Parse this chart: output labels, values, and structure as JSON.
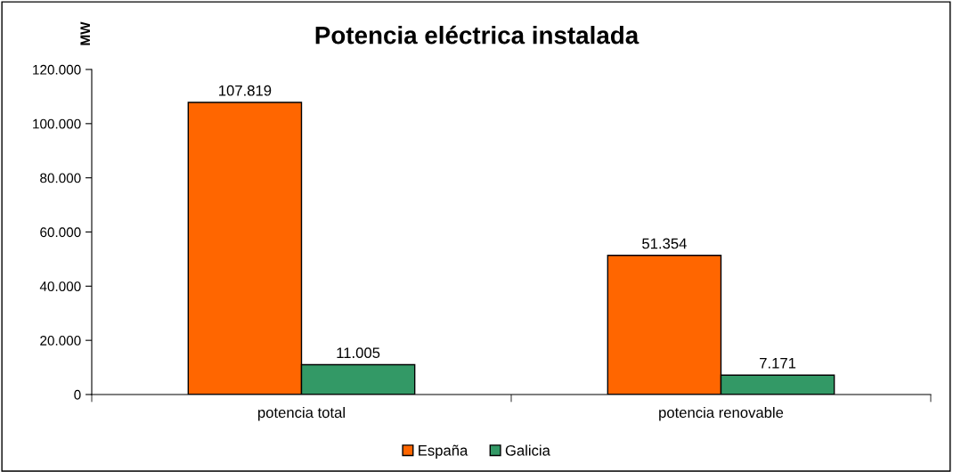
{
  "chart_data": {
    "type": "bar",
    "title": "Potencia eléctrica instalada",
    "ylabel": "MW",
    "categories": [
      "potencia total",
      "potencia renovable"
    ],
    "series": [
      {
        "name": "España",
        "color": "#ff6600",
        "values": [
          107819,
          51354
        ],
        "value_labels": [
          "107.819",
          "51.354"
        ]
      },
      {
        "name": "Galicia",
        "color": "#339966",
        "values": [
          11005,
          7171
        ],
        "value_labels": [
          "11.005",
          "7.171"
        ]
      }
    ],
    "ylim": [
      0,
      120000
    ],
    "yticks": [
      0,
      {
        "value": 20000,
        "label": "20.000"
      },
      {
        "value": 40000,
        "label": "40.000"
      },
      {
        "value": 60000,
        "label": "60.000"
      },
      {
        "value": 80000,
        "label": "80.000"
      },
      {
        "value": 100000,
        "label": "100.000"
      },
      {
        "value": 120000,
        "label": "120.000"
      }
    ],
    "grid": false,
    "legend": "bottom"
  }
}
